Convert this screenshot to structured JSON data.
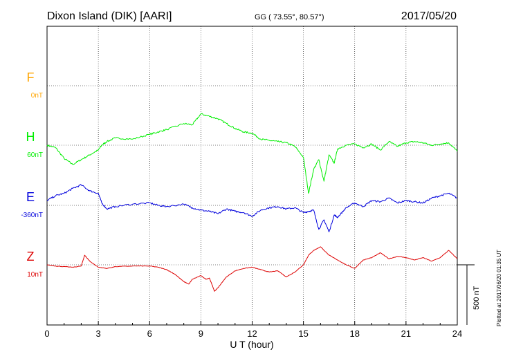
{
  "header": {
    "station": "Dixon Island (DIK)  [AARI]",
    "coords": "GG ( 73.55°,  80.57°)",
    "date": "2017/05/20"
  },
  "footer": {
    "plotted": "Plotted at 2017/06/20 01:35 UT",
    "scale_label": "500 nT"
  },
  "colors": {
    "F": "#ffa500",
    "H": "#00ee00",
    "E": "#0000dd",
    "Z": "#dd0000",
    "grid": "#000000"
  },
  "chart_data": {
    "type": "line",
    "xlabel": "U T (hour)",
    "xlim": [
      0,
      24
    ],
    "x_ticks": [
      "0",
      "3",
      "6",
      "9",
      "12",
      "15",
      "18",
      "21",
      "24"
    ],
    "scale_nT": 500,
    "components": [
      {
        "name": "F",
        "baseline_label": "0nT"
      },
      {
        "name": "H",
        "baseline_label": "60nT"
      },
      {
        "name": "E",
        "baseline_label": "-360nT"
      },
      {
        "name": "Z",
        "baseline_label": "10nT"
      }
    ],
    "series": [
      {
        "name": "H",
        "note": "values in nT relative to baseline 60nT",
        "x": [
          0,
          0.5,
          1,
          1.5,
          2,
          2.5,
          3,
          3.2,
          3.5,
          4,
          5,
          6,
          6.5,
          7,
          8,
          8.5,
          9,
          9.5,
          10,
          10.5,
          11,
          11.5,
          12,
          12.5,
          13,
          13.5,
          14,
          14.5,
          15,
          15.3,
          15.6,
          15.9,
          16.2,
          16.5,
          16.8,
          17,
          17.5,
          18,
          18.5,
          19,
          19.5,
          20,
          20.5,
          21,
          21.5,
          22,
          22.5,
          23,
          23.5,
          24
        ],
        "values": [
          0,
          -20,
          -110,
          -160,
          -120,
          -80,
          -40,
          0,
          30,
          60,
          50,
          90,
          110,
          130,
          180,
          170,
          260,
          240,
          220,
          180,
          140,
          110,
          100,
          50,
          40,
          30,
          20,
          -10,
          -100,
          -400,
          -200,
          -120,
          -300,
          -80,
          -150,
          -30,
          0,
          10,
          -20,
          10,
          -40,
          30,
          -10,
          20,
          30,
          20,
          0,
          10,
          20,
          -50
        ]
      },
      {
        "name": "E",
        "note": "values in nT relative to baseline -360nT",
        "x": [
          0,
          0.5,
          1,
          1.5,
          2,
          2.5,
          3,
          3.2,
          3.5,
          4,
          5,
          6,
          6.5,
          7,
          8,
          8.5,
          9,
          9.5,
          10,
          10.5,
          11,
          11.5,
          12,
          12.5,
          13,
          13.5,
          14,
          14.5,
          15,
          15.3,
          15.6,
          15.9,
          16.2,
          16.5,
          16.8,
          17,
          17.5,
          18,
          18.5,
          19,
          19.5,
          20,
          20.5,
          21,
          21.5,
          22,
          22.5,
          23,
          23.5,
          24
        ],
        "values": [
          40,
          80,
          100,
          140,
          170,
          120,
          100,
          20,
          -30,
          -10,
          10,
          20,
          0,
          -10,
          10,
          -20,
          -40,
          -50,
          -70,
          -30,
          -50,
          -60,
          -90,
          -40,
          -20,
          -10,
          -30,
          -20,
          -60,
          -50,
          -40,
          -200,
          -120,
          -220,
          -80,
          -100,
          -20,
          20,
          -10,
          40,
          30,
          60,
          20,
          40,
          30,
          20,
          60,
          80,
          100,
          60
        ]
      },
      {
        "name": "Z",
        "note": "values in nT relative to baseline 10nT",
        "x": [
          0,
          0.5,
          1,
          1.5,
          2,
          2.2,
          2.5,
          3,
          3.5,
          4,
          5,
          6,
          6.5,
          7,
          7.5,
          8,
          8.3,
          8.5,
          9,
          9.3,
          9.5,
          9.8,
          10,
          10.5,
          11,
          11.5,
          12,
          12.5,
          13,
          13.5,
          14,
          14.5,
          15,
          15.3,
          15.6,
          16,
          16.5,
          17,
          17.5,
          18,
          18.5,
          19,
          19.5,
          20,
          20.5,
          21,
          21.5,
          22,
          22.5,
          23,
          23.5,
          24
        ],
        "values": [
          0,
          -10,
          -15,
          -20,
          -10,
          80,
          30,
          -20,
          -30,
          -15,
          -10,
          -10,
          -20,
          -40,
          -80,
          -140,
          -160,
          -120,
          -90,
          -120,
          -110,
          -220,
          -190,
          -100,
          -50,
          -30,
          -20,
          -40,
          -60,
          -50,
          -100,
          -60,
          0,
          80,
          120,
          150,
          80,
          40,
          0,
          -30,
          40,
          60,
          100,
          50,
          70,
          60,
          40,
          60,
          30,
          60,
          120,
          50
        ]
      }
    ]
  }
}
